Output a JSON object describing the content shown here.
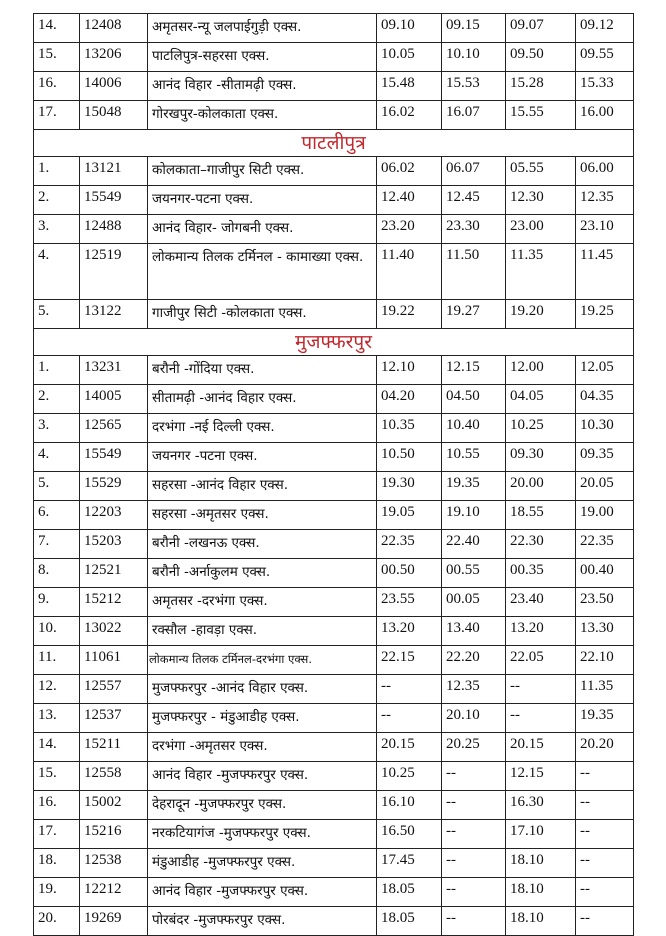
{
  "sections": [
    {
      "title": "",
      "rows": [
        {
          "no": "14.",
          "train": "12408",
          "name": "अमृतसर-न्यू जलपाईगुड़ी  एक्स.",
          "t1": "09.10",
          "t2": "09.15",
          "t3": "09.07",
          "t4": "09.12"
        },
        {
          "no": "15.",
          "train": "13206",
          "name": "पाटलिपुत्र-सहरसा  एक्स.",
          "t1": "10.05",
          "t2": "10.10",
          "t3": "09.50",
          "t4": "09.55"
        },
        {
          "no": "16.",
          "train": "14006",
          "name": "आनंद विहार -सीतामढ़ी  एक्स.",
          "t1": "15.48",
          "t2": "15.53",
          "t3": "15.28",
          "t4": "15.33"
        },
        {
          "no": "17.",
          "train": "15048",
          "name": "गोरखपुर-कोलकाता  एक्स.",
          "t1": "16.02",
          "t2": "16.07",
          "t3": "15.55",
          "t4": "16.00"
        }
      ]
    },
    {
      "title": "पाटलीपुत्र",
      "rows": [
        {
          "no": "1.",
          "train": "13121",
          "name": "कोलकाता–गाजीपुर सिटी एक्स.",
          "t1": "06.02",
          "t2": "06.07",
          "t3": "05.55",
          "t4": "06.00"
        },
        {
          "no": "2.",
          "train": "15549",
          "name": "जयनगर-पटना एक्स.",
          "t1": "12.40",
          "t2": "12.45",
          "t3": "12.30",
          "t4": "12.35"
        },
        {
          "no": "3.",
          "train": "12488",
          "name": "आनंद विहार- जोगबनी  एक्स.",
          "t1": "23.20",
          "t2": "23.30",
          "t3": "23.00",
          "t4": "23.10"
        },
        {
          "no": "4.",
          "train": "12519",
          "name": "लोकमान्य तिलक टर्मिनल - कामाख्या  एक्स.",
          "t1": "11.40",
          "t2": "11.50",
          "t3": "11.35",
          "t4": "11.45"
        },
        {
          "no": "5.",
          "train": "13122",
          "name": "गाजीपुर सिटी -कोलकाता  एक्स.",
          "t1": "19.22",
          "t2": "19.27",
          "t3": "19.20",
          "t4": "19.25"
        }
      ]
    },
    {
      "title": "मुजफ्फरपुर",
      "rows": [
        {
          "no": "1.",
          "train": "13231",
          "name": "बरौनी -गोंदिया  एक्स.",
          "t1": "12.10",
          "t2": "12.15",
          "t3": "12.00",
          "t4": "12.05"
        },
        {
          "no": "2.",
          "train": "14005",
          "name": "सीतामढ़ी -आनंद विहार  एक्स.",
          "t1": "04.20",
          "t2": "04.50",
          "t3": "04.05",
          "t4": "04.35"
        },
        {
          "no": "3.",
          "train": "12565",
          "name": "दरभंगा  -नई दिल्ली  एक्स.",
          "t1": "10.35",
          "t2": "10.40",
          "t3": "10.25",
          "t4": "10.30"
        },
        {
          "no": "4.",
          "train": "15549",
          "name": "जयनगर -पटना  एक्स.",
          "t1": "10.50",
          "t2": "10.55",
          "t3": "09.30",
          "t4": "09.35"
        },
        {
          "no": "5.",
          "train": "15529",
          "name": "सहरसा -आनंद विहार  एक्स.",
          "t1": "19.30",
          "t2": "19.35",
          "t3": "20.00",
          "t4": "20.05"
        },
        {
          "no": "6.",
          "train": "12203",
          "name": "सहरसा -अमृतसर  एक्स.",
          "t1": "19.05",
          "t2": "19.10",
          "t3": "18.55",
          "t4": "19.00"
        },
        {
          "no": "7.",
          "train": "15203",
          "name": "बरौनी -लखनऊ  एक्स.",
          "t1": "22.35",
          "t2": "22.40",
          "t3": "22.30",
          "t4": "22.35"
        },
        {
          "no": "8.",
          "train": "12521",
          "name": "बरौनी -अर्नाकुलम  एक्स.",
          "t1": "00.50",
          "t2": "00.55",
          "t3": "00.35",
          "t4": "00.40"
        },
        {
          "no": "9.",
          "train": "15212",
          "name": "अमृतसर -दरभंगा   एक्स.",
          "t1": "23.55",
          "t2": "00.05",
          "t3": "23.40",
          "t4": "23.50"
        },
        {
          "no": "10.",
          "train": "13022",
          "name": "रक्सौल -हावड़ा  एक्स.",
          "t1": "13.20",
          "t2": "13.40",
          "t3": "13.20",
          "t4": "13.30"
        },
        {
          "no": "11.",
          "train": "11061",
          "name": "लोकमान्य तिलक टर्मिनल-दरभंगा एक्स.",
          "t1": "22.15",
          "t2": "22.20",
          "t3": "22.05",
          "t4": "22.10"
        },
        {
          "no": "12.",
          "train": "12557",
          "name": "मुजफ्फरपुर -आनंद विहार  एक्स.",
          "t1": "--",
          "t2": "12.35",
          "t3": "--",
          "t4": "11.35"
        },
        {
          "no": "13.",
          "train": "12537",
          "name": "मुजफ्फरपुर - मंडुआडीह  एक्स.",
          "t1": "--",
          "t2": "20.10",
          "t3": "--",
          "t4": "19.35"
        },
        {
          "no": "14.",
          "train": "15211",
          "name": "दरभंगा  -अमृतसर  एक्स.",
          "t1": "20.15",
          "t2": "20.25",
          "t3": "20.15",
          "t4": "20.20"
        },
        {
          "no": "15.",
          "train": "12558",
          "name": "आनंद विहार -मुजफ्फरपुर  एक्स.",
          "t1": "10.25",
          "t2": "--",
          "t3": "12.15",
          "t4": "--"
        },
        {
          "no": "16.",
          "train": "15002",
          "name": "देहरादून -मुजफ्फरपुर  एक्स.",
          "t1": "16.10",
          "t2": "--",
          "t3": "16.30",
          "t4": "--"
        },
        {
          "no": "17.",
          "train": "15216",
          "name": "नरकटियागंज  -मुजफ्फरपुर  एक्स.",
          "t1": "16.50",
          "t2": "--",
          "t3": "17.10",
          "t4": "--"
        },
        {
          "no": "18.",
          "train": "12538",
          "name": "मंडुआडीह -मुजफ्फरपुर  एक्स.",
          "t1": "17.45",
          "t2": "--",
          "t3": "18.10",
          "t4": "--"
        },
        {
          "no": "19.",
          "train": "12212",
          "name": "आनंद विहार -मुजफ्फरपुर  एक्स.",
          "t1": "18.05",
          "t2": "--",
          "t3": "18.10",
          "t4": "--"
        },
        {
          "no": "20.",
          "train": "19269",
          "name": "पोरबंदर  -मुजफ्फरपुर  एक्स.",
          "t1": "18.05",
          "t2": "--",
          "t3": "18.10",
          "t4": "--"
        }
      ]
    }
  ],
  "colors": {
    "section_title": "#c0282d",
    "border": "#222222"
  }
}
